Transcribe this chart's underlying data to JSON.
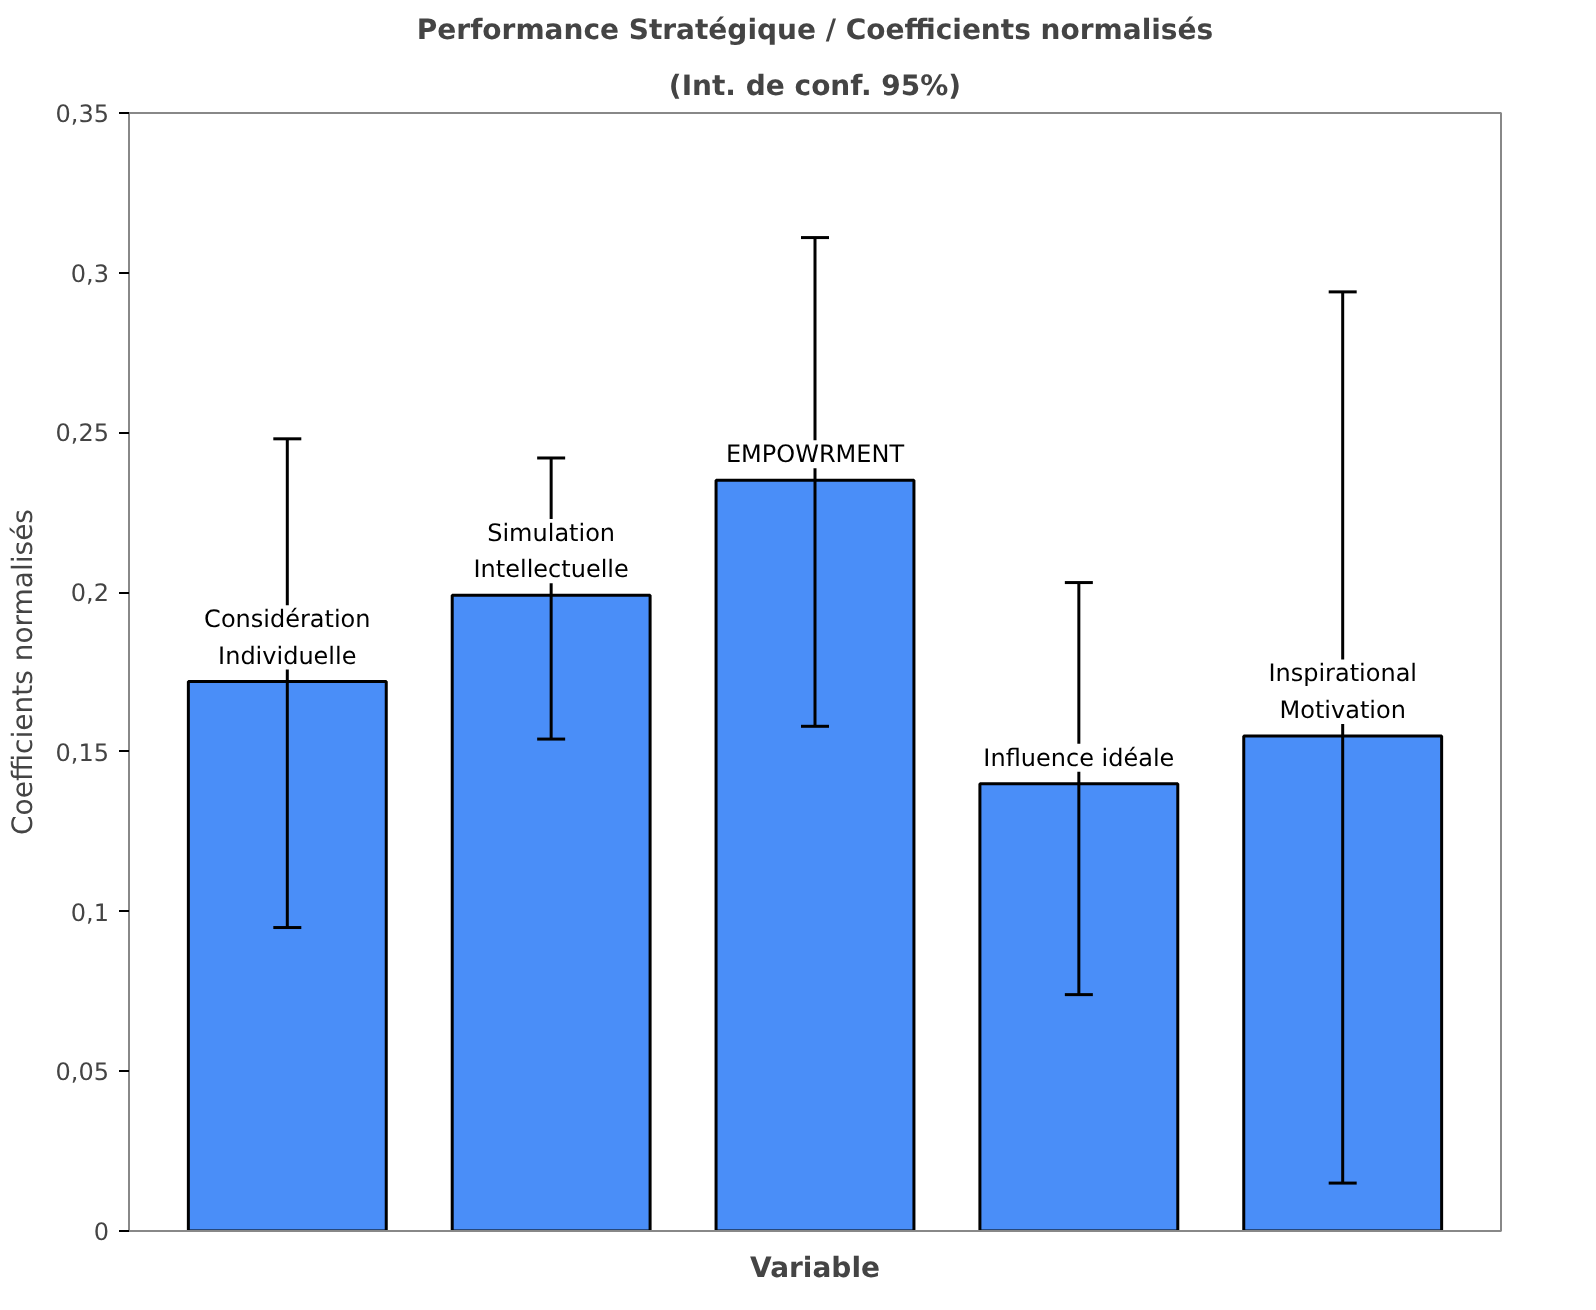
{
  "chart_data": {
    "type": "bar",
    "title": "Performance Stratégique / Coefficients normalisés",
    "subtitle": "(Int. de conf. 95%)",
    "xlabel": "Variable",
    "ylabel": "Coefficients normalisés",
    "categories": [
      "Considération\nIndividuelle",
      "Simulation\nIntellectuelle",
      "EMPOWRMENT",
      "Influence idéale",
      "Inspirational\nMotivation"
    ],
    "values": [
      0.172,
      0.199,
      0.235,
      0.14,
      0.155
    ],
    "errors": [
      [
        0.095,
        0.248
      ],
      [
        0.154,
        0.242
      ],
      [
        0.158,
        0.311
      ],
      [
        0.074,
        0.203
      ],
      [
        0.015,
        0.294
      ]
    ],
    "color": "#4a8ef8",
    "ylim": [
      0,
      0.35
    ],
    "yticks": [
      0,
      {
        "value": 0.05,
        "label": "0,05"
      },
      {
        "value": 0.1,
        "label": "0,1"
      },
      {
        "value": 0.15,
        "label": "0,15"
      },
      {
        "value": 0.2,
        "label": "0,2"
      },
      {
        "value": 0.25,
        "label": "0,25"
      },
      {
        "value": 0.3,
        "label": "0,3"
      },
      {
        "value": 0.35,
        "label": "0,35"
      }
    ],
    "tick_labels": "y",
    "grid": false
  }
}
